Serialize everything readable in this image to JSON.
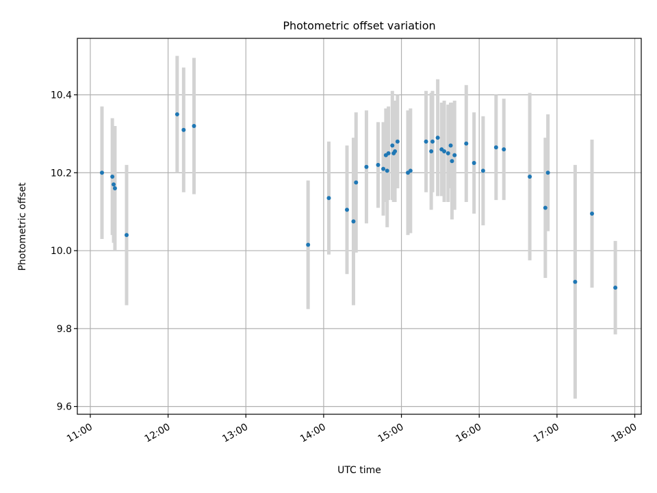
{
  "chart_data": {
    "type": "scatter",
    "title": "Photometric offset variation",
    "xlabel": "UTC time",
    "ylabel": "Photometric offset",
    "xlim": [
      "10:50",
      "18:05"
    ],
    "ylim": [
      9.58,
      10.545
    ],
    "x_ticks": [
      "11:00",
      "12:00",
      "13:00",
      "14:00",
      "15:00",
      "16:00",
      "17:00",
      "18:00"
    ],
    "y_ticks": [
      "9.6",
      "9.8",
      "10.0",
      "10.2",
      "10.4"
    ],
    "grid": true,
    "x_tick_rotation": 30,
    "colors": {
      "point": "#1f77b4",
      "errorbar": "#d3d3d3",
      "grid": "#b0b0b0",
      "axis": "#000000"
    },
    "series": [
      {
        "x": [
          "11:09",
          "11:17",
          "11:18",
          "11:19",
          "11:28",
          "12:07",
          "12:12",
          "12:20",
          "13:48",
          "14:04",
          "14:18",
          "14:23",
          "14:25",
          "14:33",
          "14:42",
          "14:46",
          "14:48",
          "14:49",
          "14:50",
          "14:53",
          "14:54",
          "14:55",
          "14:57",
          "15:05",
          "15:07",
          "15:19",
          "15:23",
          "15:24",
          "15:28",
          "15:31",
          "15:33",
          "15:36",
          "15:38",
          "15:39",
          "15:41",
          "15:50",
          "15:56",
          "16:03",
          "16:13",
          "16:19",
          "16:39",
          "16:51",
          "16:53",
          "17:14",
          "17:27",
          "17:45"
        ],
        "y": [
          10.2,
          10.19,
          10.17,
          10.16,
          10.04,
          10.35,
          10.31,
          10.32,
          10.015,
          10.135,
          10.105,
          10.075,
          10.175,
          10.215,
          10.22,
          10.21,
          10.245,
          10.205,
          10.25,
          10.27,
          10.25,
          10.255,
          10.28,
          10.2,
          10.205,
          10.28,
          10.255,
          10.28,
          10.29,
          10.26,
          10.255,
          10.25,
          10.27,
          10.23,
          10.245,
          10.275,
          10.225,
          10.205,
          10.265,
          10.26,
          10.19,
          10.11,
          10.2,
          9.92,
          10.095,
          9.905
        ],
        "err": [
          0.17,
          0.15,
          0.15,
          0.16,
          0.18,
          0.15,
          0.16,
          0.175,
          0.165,
          0.145,
          0.165,
          0.215,
          0.18,
          0.145,
          0.11,
          0.12,
          0.12,
          0.145,
          0.12,
          0.14,
          0.125,
          0.13,
          0.12,
          0.16,
          0.16,
          0.13,
          0.15,
          0.13,
          0.15,
          0.12,
          0.13,
          0.125,
          0.11,
          0.15,
          0.14,
          0.15,
          0.13,
          0.14,
          0.135,
          0.13,
          0.215,
          0.18,
          0.15,
          0.3,
          0.19,
          0.12
        ]
      }
    ]
  }
}
